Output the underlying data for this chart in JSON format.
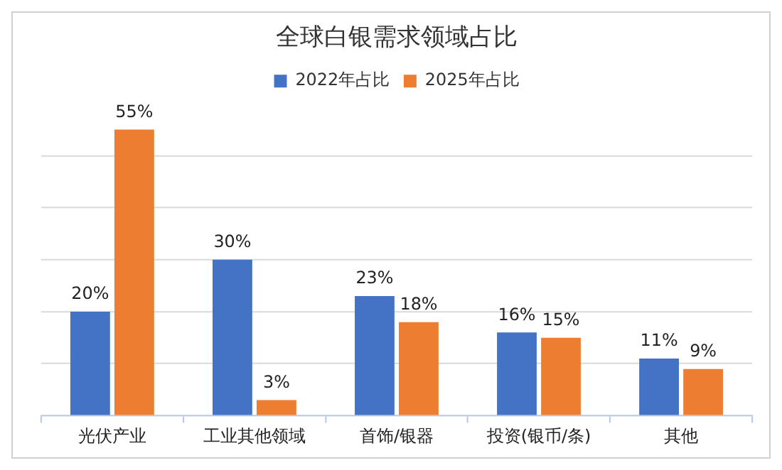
{
  "chart_data": {
    "type": "bar",
    "title": "全球白银需求领域占比",
    "categories": [
      "光伏产业",
      "工业其他领域",
      "首饰/银器",
      "投资(银币/条)",
      "其他"
    ],
    "series": [
      {
        "name": "2022年占比",
        "color": "#4472c4",
        "values": [
          20,
          30,
          23,
          16,
          11
        ],
        "value_labels": [
          "20%",
          "30%",
          "23%",
          "16%",
          "11%"
        ]
      },
      {
        "name": "2025年占比",
        "color": "#ed7d31",
        "values": [
          55,
          3,
          18,
          15,
          9
        ],
        "value_labels": [
          "55%",
          "3%",
          "18%",
          "15%",
          "9%"
        ]
      }
    ],
    "yticks": [
      {
        "value": 0,
        "label": null
      },
      {
        "value": 10,
        "label": null
      },
      {
        "value": 20,
        "label": null
      },
      {
        "value": 30,
        "label": null
      },
      {
        "value": 40,
        "label": null
      },
      {
        "value": 50,
        "label": null
      }
    ],
    "grid": "y",
    "legend": "top",
    "tick_labels": "x"
  }
}
